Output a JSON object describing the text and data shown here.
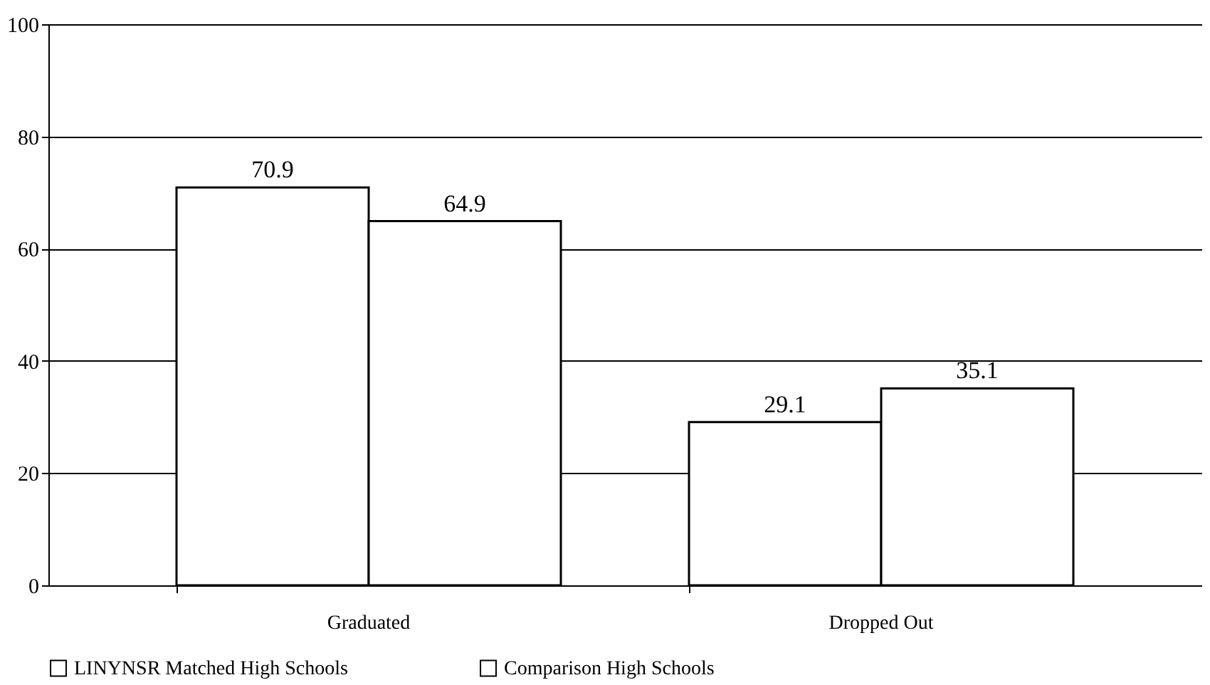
{
  "chart_data": {
    "type": "bar",
    "categories": [
      "Graduated",
      "Dropped Out"
    ],
    "series": [
      {
        "name": "LINYNSR Matched High Schools",
        "color": "#ffffff",
        "values": [
          70.9,
          29.1
        ]
      },
      {
        "name": "Comparison High Schools",
        "color": "#ffffff",
        "values": [
          64.9,
          35.1
        ]
      }
    ],
    "ylim": [
      0,
      100
    ],
    "yticks": [
      0,
      20,
      40,
      60,
      80,
      100
    ],
    "grid": "y",
    "legend": "bottom",
    "data_labels": true
  }
}
